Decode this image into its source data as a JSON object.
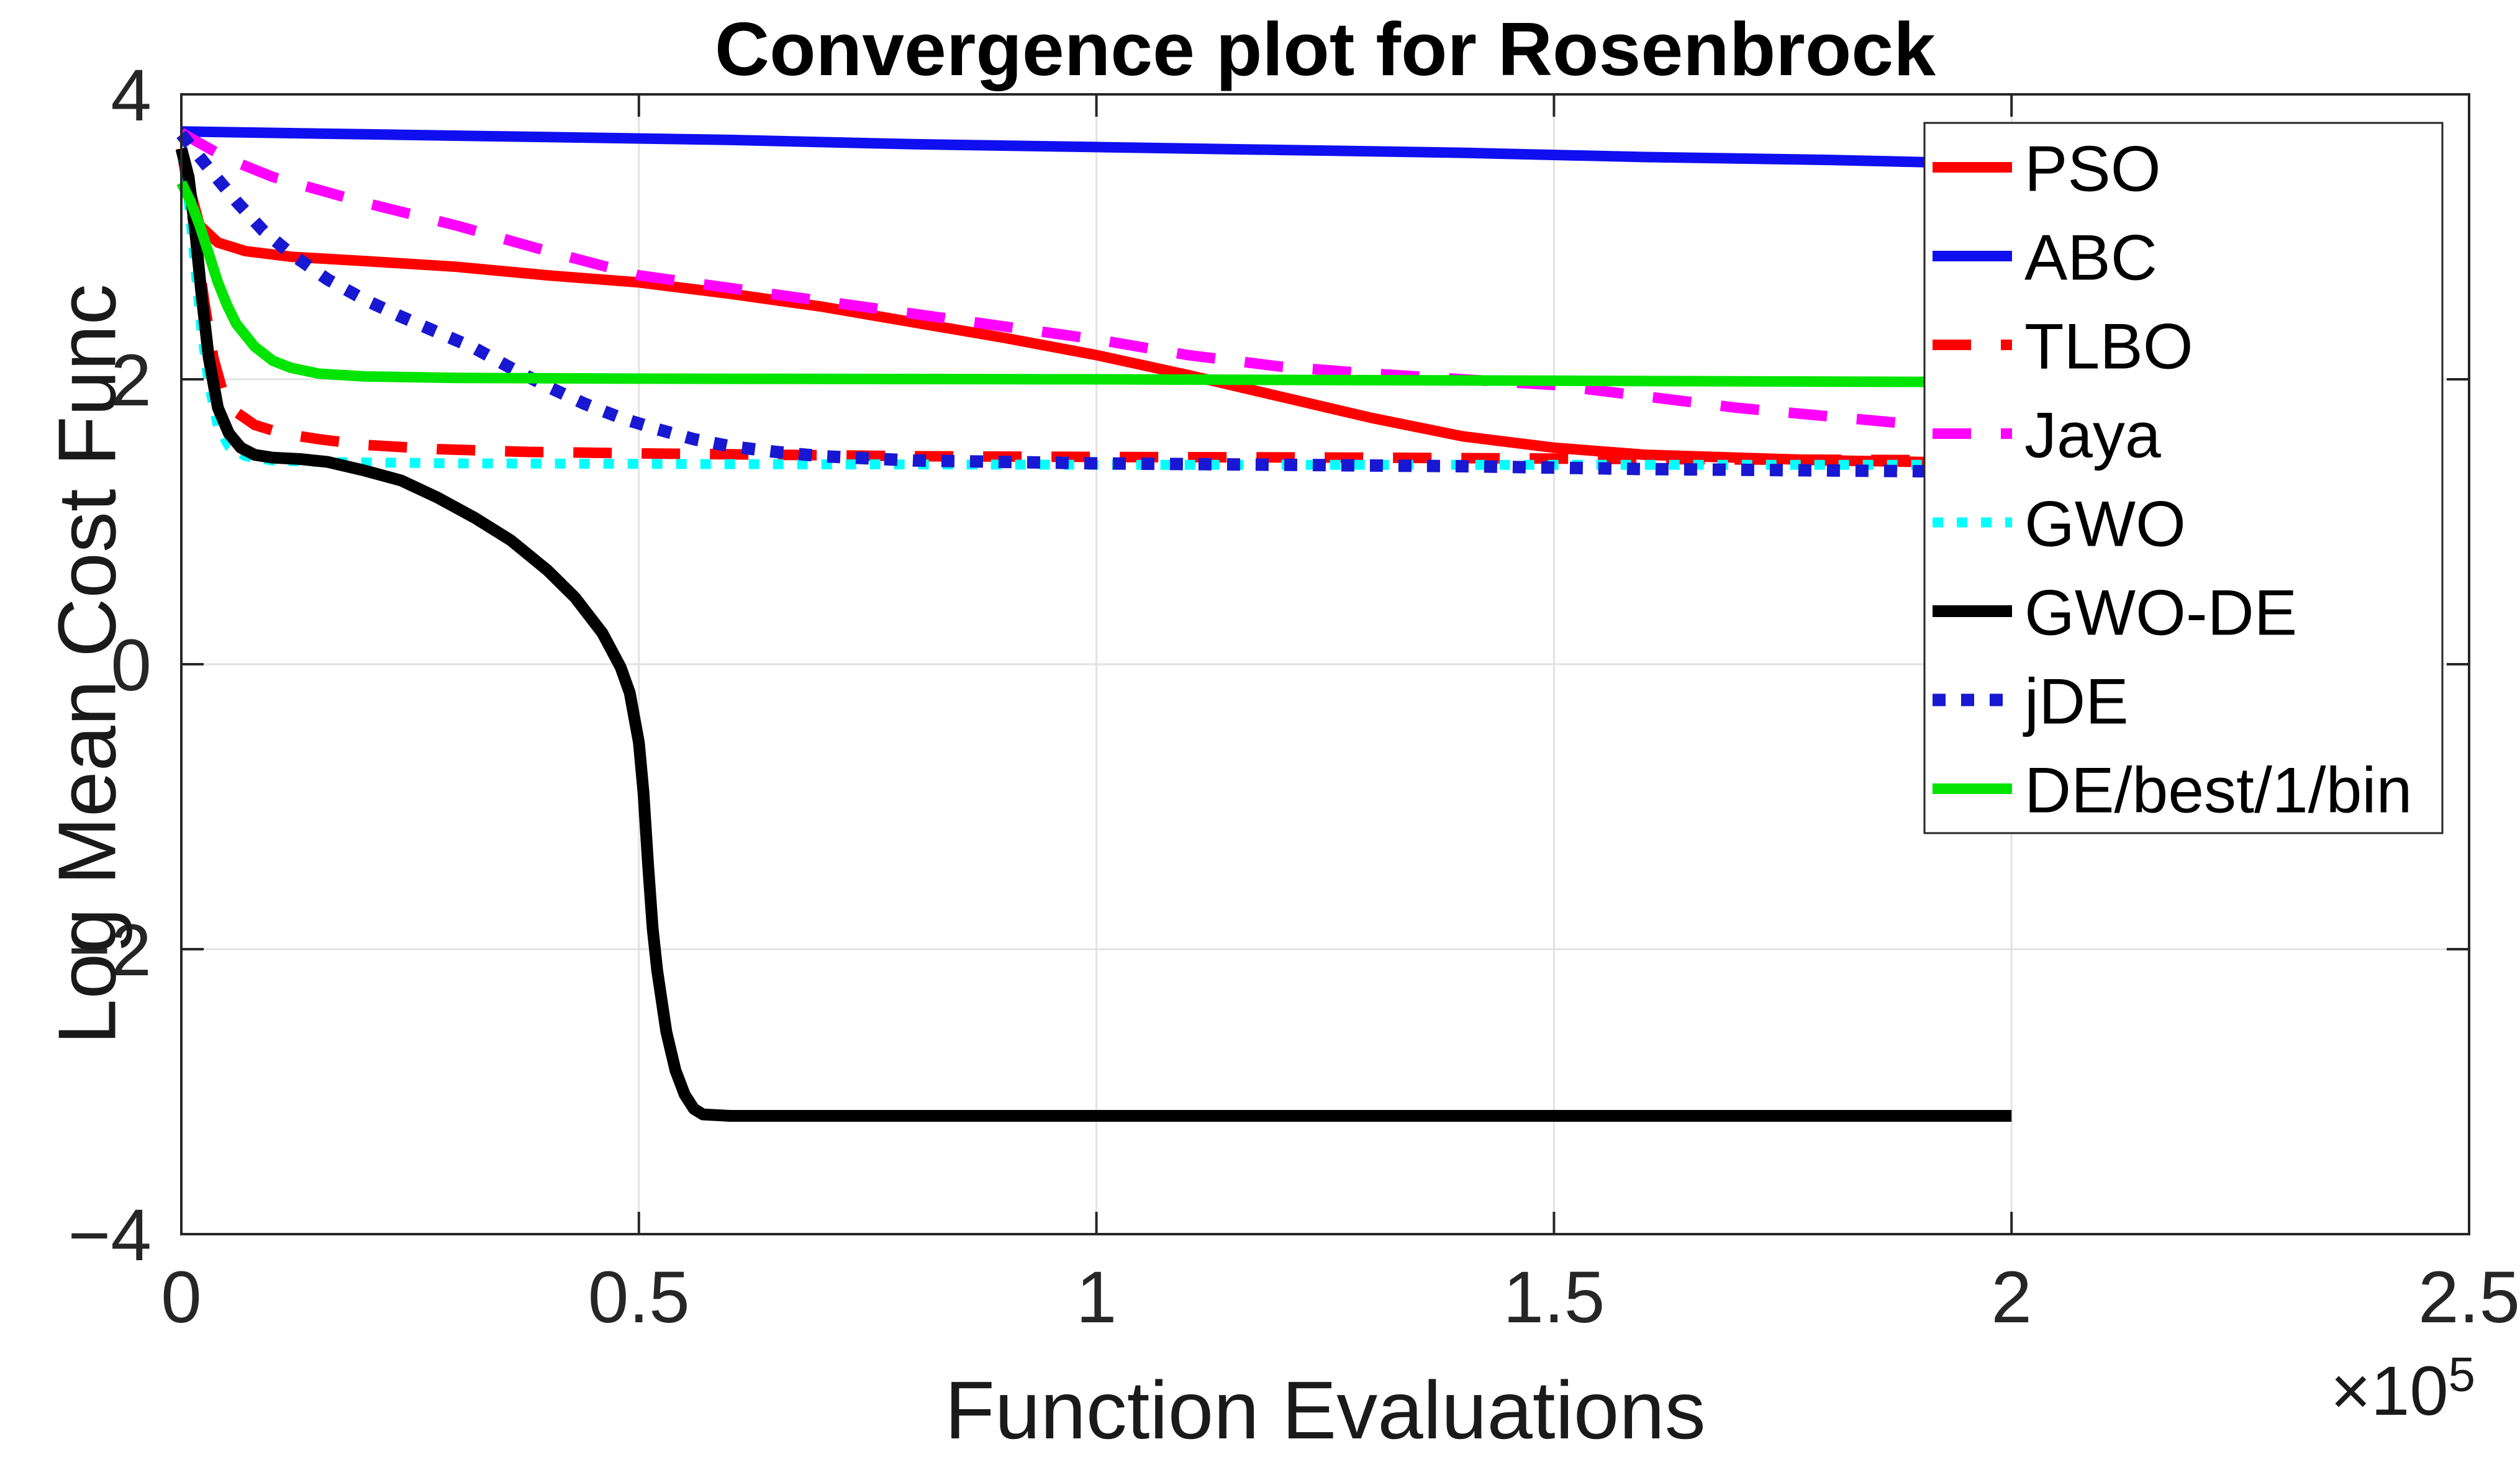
{
  "title": "Convergence plot for Rosenbrock",
  "x_axis": {
    "label": "Function Evaluations",
    "multiplier_base": "×10",
    "multiplier_exp": "5",
    "tick_labels": [
      "0",
      "0.5",
      "1",
      "1.5",
      "2",
      "2.5"
    ],
    "tick_values": [
      0,
      0.5,
      1,
      1.5,
      2,
      2.5
    ],
    "grid_values": [
      0.5,
      1,
      1.5,
      2
    ],
    "range": [
      0,
      2.5
    ]
  },
  "y_axis": {
    "label": "Log Mean Cost Func",
    "tick_labels": [
      "4",
      "2",
      "0",
      "−2",
      "−4"
    ],
    "tick_values": [
      4,
      2,
      0,
      -2,
      -4
    ],
    "grid_values": [
      2,
      0,
      -2
    ],
    "range": [
      -4,
      4
    ]
  },
  "style": {
    "axis_color": "#262626",
    "grid_color": "#e2e2e2",
    "text_color": "#262626",
    "plot_bg": "#ffffff",
    "legend_border": "#262626"
  },
  "legend": {
    "position": "upper-right",
    "entries": [
      "PSO",
      "ABC",
      "TLBO",
      "Jaya",
      "GWO",
      "GWO-DE",
      "jDE",
      "DE/best/1/bin"
    ]
  },
  "chart_data": {
    "type": "line",
    "title": "Convergence plot for Rosenbrock",
    "xlabel": "Function Evaluations (×10^5)",
    "ylabel": "Log Mean Cost Func",
    "xlim": [
      0,
      2.5
    ],
    "ylim": [
      -4,
      4
    ],
    "grid": true,
    "x_units": "1e5 function evaluations",
    "series": [
      {
        "name": "PSO",
        "color": "#ff0000",
        "line_style": "solid",
        "width": 17,
        "points": [
          [
            0,
            3.6
          ],
          [
            0.01,
            3.32
          ],
          [
            0.02,
            3.08
          ],
          [
            0.04,
            2.96
          ],
          [
            0.07,
            2.9
          ],
          [
            0.12,
            2.86
          ],
          [
            0.2,
            2.83
          ],
          [
            0.3,
            2.79
          ],
          [
            0.4,
            2.73
          ],
          [
            0.5,
            2.68
          ],
          [
            0.6,
            2.6
          ],
          [
            0.7,
            2.51
          ],
          [
            0.8,
            2.4
          ],
          [
            0.9,
            2.29
          ],
          [
            1.0,
            2.17
          ],
          [
            1.1,
            2.03
          ],
          [
            1.2,
            1.88
          ],
          [
            1.3,
            1.73
          ],
          [
            1.4,
            1.6
          ],
          [
            1.5,
            1.52
          ],
          [
            1.6,
            1.47
          ],
          [
            1.7,
            1.45
          ],
          [
            1.8,
            1.43
          ],
          [
            1.9,
            1.42
          ],
          [
            2.0,
            1.41
          ]
        ]
      },
      {
        "name": "ABC",
        "color": "#0f0ff0",
        "line_style": "solid",
        "width": 17,
        "points": [
          [
            0,
            3.74
          ],
          [
            0.2,
            3.72
          ],
          [
            0.4,
            3.7
          ],
          [
            0.6,
            3.68
          ],
          [
            0.8,
            3.65
          ],
          [
            1.0,
            3.63
          ],
          [
            1.2,
            3.61
          ],
          [
            1.4,
            3.59
          ],
          [
            1.6,
            3.56
          ],
          [
            1.8,
            3.54
          ],
          [
            2.0,
            3.51
          ]
        ]
      },
      {
        "name": "TLBO",
        "color": "#ff0000",
        "line_style": "dashed",
        "width": 17,
        "points": [
          [
            0,
            3.62
          ],
          [
            0.012,
            3.15
          ],
          [
            0.025,
            2.55
          ],
          [
            0.035,
            2.15
          ],
          [
            0.045,
            1.92
          ],
          [
            0.06,
            1.77
          ],
          [
            0.08,
            1.68
          ],
          [
            0.11,
            1.62
          ],
          [
            0.15,
            1.58
          ],
          [
            0.2,
            1.54
          ],
          [
            0.28,
            1.51
          ],
          [
            0.38,
            1.49
          ],
          [
            0.5,
            1.48
          ],
          [
            0.65,
            1.47
          ],
          [
            0.8,
            1.46
          ],
          [
            1.0,
            1.455
          ],
          [
            1.3,
            1.45
          ],
          [
            1.6,
            1.44
          ],
          [
            2.0,
            1.43
          ]
        ]
      },
      {
        "name": "Jaya",
        "color": "#ff00ff",
        "line_style": "dashed",
        "width": 17,
        "points": [
          [
            0,
            3.73
          ],
          [
            0.05,
            3.55
          ],
          [
            0.1,
            3.42
          ],
          [
            0.2,
            3.24
          ],
          [
            0.3,
            3.08
          ],
          [
            0.4,
            2.9
          ],
          [
            0.5,
            2.73
          ],
          [
            0.6,
            2.64
          ],
          [
            0.7,
            2.55
          ],
          [
            0.8,
            2.46
          ],
          [
            0.9,
            2.37
          ],
          [
            1.0,
            2.28
          ],
          [
            1.1,
            2.17
          ],
          [
            1.2,
            2.09
          ],
          [
            1.3,
            2.04
          ],
          [
            1.4,
            2.0
          ],
          [
            1.5,
            1.96
          ],
          [
            1.6,
            1.88
          ],
          [
            1.7,
            1.8
          ],
          [
            1.8,
            1.74
          ],
          [
            1.9,
            1.68
          ],
          [
            2.0,
            1.62
          ]
        ]
      },
      {
        "name": "GWO",
        "color": "#00ffff",
        "line_style": "dotted",
        "width": 16,
        "points": [
          [
            0,
            3.6
          ],
          [
            0.008,
            3.25
          ],
          [
            0.015,
            2.8
          ],
          [
            0.022,
            2.35
          ],
          [
            0.03,
            1.97
          ],
          [
            0.04,
            1.67
          ],
          [
            0.052,
            1.53
          ],
          [
            0.07,
            1.46
          ],
          [
            0.1,
            1.43
          ],
          [
            0.15,
            1.42
          ],
          [
            0.3,
            1.41
          ],
          [
            0.6,
            1.405
          ],
          [
            1.0,
            1.4
          ],
          [
            1.5,
            1.4
          ],
          [
            2.0,
            1.4
          ]
        ]
      },
      {
        "name": "GWO-DE",
        "color": "#000000",
        "line_style": "solid",
        "width": 19,
        "points": [
          [
            0,
            3.62
          ],
          [
            0.008,
            3.42
          ],
          [
            0.015,
            3.05
          ],
          [
            0.022,
            2.6
          ],
          [
            0.03,
            2.15
          ],
          [
            0.04,
            1.8
          ],
          [
            0.052,
            1.62
          ],
          [
            0.065,
            1.52
          ],
          [
            0.08,
            1.47
          ],
          [
            0.1,
            1.45
          ],
          [
            0.13,
            1.44
          ],
          [
            0.16,
            1.42
          ],
          [
            0.2,
            1.36
          ],
          [
            0.24,
            1.29
          ],
          [
            0.28,
            1.17
          ],
          [
            0.32,
            1.03
          ],
          [
            0.36,
            0.87
          ],
          [
            0.4,
            0.66
          ],
          [
            0.43,
            0.47
          ],
          [
            0.46,
            0.22
          ],
          [
            0.48,
            -0.02
          ],
          [
            0.49,
            -0.2
          ],
          [
            0.5,
            -0.55
          ],
          [
            0.505,
            -0.9
          ],
          [
            0.51,
            -1.4
          ],
          [
            0.515,
            -1.85
          ],
          [
            0.52,
            -2.15
          ],
          [
            0.53,
            -2.58
          ],
          [
            0.54,
            -2.85
          ],
          [
            0.55,
            -3.02
          ],
          [
            0.56,
            -3.12
          ],
          [
            0.57,
            -3.16
          ],
          [
            0.6,
            -3.17
          ],
          [
            1.0,
            -3.17
          ],
          [
            1.5,
            -3.17
          ],
          [
            2.0,
            -3.17
          ]
        ]
      },
      {
        "name": "jDE",
        "color": "#1818d2",
        "line_style": "dotted",
        "width": 20,
        "points": [
          [
            0,
            3.72
          ],
          [
            0.03,
            3.48
          ],
          [
            0.06,
            3.25
          ],
          [
            0.09,
            3.04
          ],
          [
            0.12,
            2.88
          ],
          [
            0.16,
            2.7
          ],
          [
            0.2,
            2.56
          ],
          [
            0.24,
            2.44
          ],
          [
            0.28,
            2.33
          ],
          [
            0.32,
            2.22
          ],
          [
            0.36,
            2.08
          ],
          [
            0.4,
            1.95
          ],
          [
            0.44,
            1.83
          ],
          [
            0.48,
            1.73
          ],
          [
            0.52,
            1.65
          ],
          [
            0.56,
            1.58
          ],
          [
            0.6,
            1.53
          ],
          [
            0.65,
            1.49
          ],
          [
            0.7,
            1.46
          ],
          [
            0.8,
            1.43
          ],
          [
            0.9,
            1.42
          ],
          [
            1.0,
            1.41
          ],
          [
            1.2,
            1.4
          ],
          [
            1.4,
            1.39
          ],
          [
            1.6,
            1.37
          ],
          [
            1.8,
            1.36
          ],
          [
            2.0,
            1.35
          ]
        ]
      },
      {
        "name": "DE/best/1/bin",
        "color": "#00e400",
        "line_style": "solid",
        "width": 17,
        "points": [
          [
            0,
            3.38
          ],
          [
            0.01,
            3.25
          ],
          [
            0.02,
            3.08
          ],
          [
            0.03,
            2.88
          ],
          [
            0.04,
            2.68
          ],
          [
            0.05,
            2.52
          ],
          [
            0.06,
            2.39
          ],
          [
            0.08,
            2.23
          ],
          [
            0.1,
            2.13
          ],
          [
            0.12,
            2.08
          ],
          [
            0.15,
            2.04
          ],
          [
            0.2,
            2.02
          ],
          [
            0.3,
            2.01
          ],
          [
            0.5,
            2.005
          ],
          [
            1.0,
            2.0
          ],
          [
            1.5,
            1.99
          ],
          [
            2.0,
            1.98
          ]
        ]
      }
    ]
  }
}
